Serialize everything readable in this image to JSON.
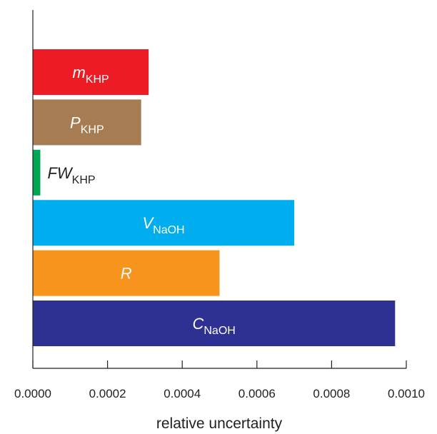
{
  "chart_data": {
    "type": "bar",
    "orientation": "horizontal",
    "xlabel": "relative uncertainty",
    "ylabel": "",
    "xlim": [
      0.0,
      0.001
    ],
    "xticks": [
      "0.0000",
      "0.0002",
      "0.0004",
      "0.0006",
      "0.0008",
      "0.0010"
    ],
    "tick_values": [
      0.0,
      0.0002,
      0.0004,
      0.0006,
      0.0008,
      0.001
    ],
    "grid": false,
    "legend": "none",
    "bars": [
      {
        "name": "m",
        "subscript": "KHP",
        "value": 0.00031,
        "color": "#ed1c24",
        "label_color": "#ffffff",
        "label_position": "inside"
      },
      {
        "name": "P",
        "subscript": "KHP",
        "value": 0.00029,
        "color": "#a67c52",
        "label_color": "#ffffff",
        "label_position": "inside"
      },
      {
        "name": "FW",
        "subscript": "KHP",
        "value": 2e-05,
        "color": "#00a651",
        "label_color": "#231f20",
        "label_position": "outside"
      },
      {
        "name": "V",
        "subscript": "NaOH",
        "value": 0.0007,
        "color": "#00aeef",
        "label_color": "#ffffff",
        "label_position": "inside"
      },
      {
        "name": "R",
        "subscript": "",
        "value": 0.0005,
        "color": "#f7941d",
        "label_color": "#ffffff",
        "label_position": "inside"
      },
      {
        "name": "C",
        "subscript": "NaOH",
        "value": 0.00097,
        "color": "#2e3192",
        "label_color": "#ffffff",
        "label_position": "inside"
      }
    ]
  }
}
